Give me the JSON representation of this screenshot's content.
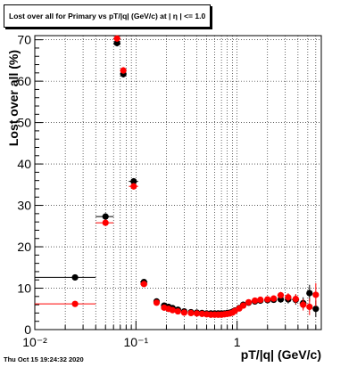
{
  "title": "Lost over all for Primary vs pT/|q| (GeV/c) at |  η | <= 1.0",
  "footer": "Thu Oct 15 19:24:32 2020",
  "chart_data": {
    "type": "scatter",
    "xlabel": "pT/|q| (GeV/c)",
    "ylabel": "Lost over all (%)",
    "xscale": "log",
    "xlim": [
      0.01,
      6.8
    ],
    "ylim": [
      0,
      71
    ],
    "grid": true,
    "x_ticks": [
      {
        "value": 0.01,
        "label": "10⁻²"
      },
      {
        "value": 0.1,
        "label": "10⁻¹"
      },
      {
        "value": 1,
        "label": "1"
      }
    ],
    "y_ticks": [
      0,
      10,
      20,
      30,
      40,
      50,
      60,
      70
    ],
    "series": [
      {
        "color": "#000000",
        "x": [
          0.025,
          0.05,
          0.065,
          0.075,
          0.095,
          0.12,
          0.16,
          0.19,
          0.21,
          0.23,
          0.26,
          0.3,
          0.35,
          0.4,
          0.45,
          0.5,
          0.55,
          0.6,
          0.65,
          0.7,
          0.75,
          0.8,
          0.85,
          0.9,
          0.95,
          1.05,
          1.15,
          1.3,
          1.5,
          1.7,
          2.0,
          2.3,
          2.7,
          3.2,
          3.8,
          4.5,
          5.2,
          6.0
        ],
        "y": [
          12.6,
          27.3,
          69.2,
          61.7,
          35.8,
          11.5,
          6.8,
          5.8,
          5.5,
          5.2,
          4.8,
          4.4,
          4.2,
          4.1,
          4.0,
          3.9,
          3.9,
          3.9,
          3.9,
          3.9,
          3.9,
          4.0,
          4.1,
          4.3,
          4.6,
          5.2,
          6.0,
          6.5,
          6.8,
          7.0,
          7.1,
          7.2,
          7.3,
          7.3,
          7.2,
          6.4,
          8.8,
          5.0
        ],
        "xerr_lo": [
          0.015,
          0.01,
          0.005,
          0.005,
          0.01,
          0.01,
          0.01,
          0.01,
          0.01,
          0.01,
          0.01,
          0.02,
          0.02,
          0.02,
          0.02,
          0.02,
          0.02,
          0.02,
          0.02,
          0.02,
          0.02,
          0.02,
          0.02,
          0.02,
          0.02,
          0.05,
          0.05,
          0.05,
          0.1,
          0.1,
          0.15,
          0.15,
          0.2,
          0.25,
          0.3,
          0.35,
          0.35,
          0.4
        ],
        "xerr_hi": [
          0.015,
          0.01,
          0.005,
          0.005,
          0.01,
          0.01,
          0.01,
          0.01,
          0.01,
          0.01,
          0.01,
          0.02,
          0.02,
          0.02,
          0.02,
          0.02,
          0.02,
          0.02,
          0.02,
          0.02,
          0.02,
          0.02,
          0.02,
          0.02,
          0.02,
          0.05,
          0.05,
          0.05,
          0.1,
          0.1,
          0.15,
          0.15,
          0.2,
          0.25,
          0.3,
          0.35,
          0.35,
          0.4
        ],
        "yerr": [
          0.5,
          0.8,
          0.8,
          0.8,
          0.8,
          0.5,
          0.4,
          0.3,
          0.3,
          0.3,
          0.3,
          0.3,
          0.3,
          0.3,
          0.3,
          0.3,
          0.3,
          0.3,
          0.3,
          0.3,
          0.3,
          0.3,
          0.3,
          0.3,
          0.3,
          0.3,
          0.4,
          0.4,
          0.5,
          0.5,
          0.6,
          0.7,
          0.8,
          1.0,
          1.2,
          1.4,
          2.0,
          2.0
        ]
      },
      {
        "color": "#ff0000",
        "x": [
          0.025,
          0.05,
          0.065,
          0.075,
          0.095,
          0.12,
          0.16,
          0.19,
          0.21,
          0.23,
          0.26,
          0.3,
          0.35,
          0.4,
          0.45,
          0.5,
          0.55,
          0.6,
          0.65,
          0.7,
          0.75,
          0.8,
          0.85,
          0.9,
          0.95,
          1.05,
          1.15,
          1.3,
          1.5,
          1.7,
          2.0,
          2.3,
          2.7,
          3.2,
          3.8,
          4.5,
          5.2,
          6.0
        ],
        "y": [
          6.2,
          25.8,
          70.3,
          62.6,
          34.6,
          11.0,
          6.5,
          5.3,
          5.0,
          4.7,
          4.4,
          4.1,
          4.0,
          3.9,
          3.8,
          3.7,
          3.6,
          3.6,
          3.6,
          3.6,
          3.7,
          3.8,
          3.9,
          4.1,
          4.5,
          5.1,
          5.8,
          6.6,
          7.0,
          7.2,
          7.3,
          7.5,
          8.3,
          7.8,
          7.4,
          6.0,
          5.5,
          8.4
        ],
        "xerr_lo": [
          0.015,
          0.01,
          0.005,
          0.005,
          0.01,
          0.01,
          0.01,
          0.01,
          0.01,
          0.01,
          0.01,
          0.02,
          0.02,
          0.02,
          0.02,
          0.02,
          0.02,
          0.02,
          0.02,
          0.02,
          0.02,
          0.02,
          0.02,
          0.02,
          0.02,
          0.05,
          0.05,
          0.05,
          0.1,
          0.1,
          0.15,
          0.15,
          0.2,
          0.25,
          0.3,
          0.35,
          0.35,
          0.4
        ],
        "xerr_hi": [
          0.015,
          0.01,
          0.005,
          0.005,
          0.01,
          0.01,
          0.01,
          0.01,
          0.01,
          0.01,
          0.01,
          0.02,
          0.02,
          0.02,
          0.02,
          0.02,
          0.02,
          0.02,
          0.02,
          0.02,
          0.02,
          0.02,
          0.02,
          0.02,
          0.02,
          0.05,
          0.05,
          0.05,
          0.1,
          0.1,
          0.15,
          0.15,
          0.2,
          0.25,
          0.3,
          0.35,
          0.35,
          0.4
        ],
        "yerr": [
          0.4,
          0.7,
          0.8,
          0.8,
          0.8,
          0.5,
          0.4,
          0.3,
          0.3,
          0.3,
          0.3,
          0.3,
          0.3,
          0.3,
          0.3,
          0.3,
          0.3,
          0.3,
          0.3,
          0.3,
          0.3,
          0.3,
          0.3,
          0.3,
          0.3,
          0.3,
          0.4,
          0.4,
          0.5,
          0.5,
          0.6,
          0.7,
          0.8,
          1.0,
          1.2,
          1.4,
          2.0,
          2.8
        ]
      }
    ]
  }
}
